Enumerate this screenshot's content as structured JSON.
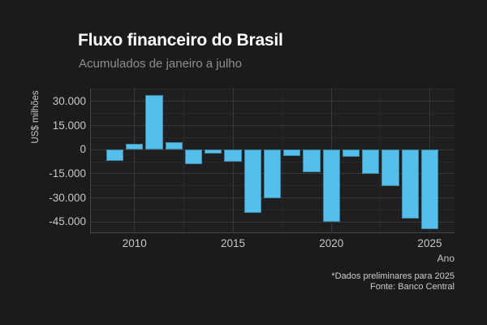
{
  "chart_data": {
    "type": "bar",
    "title": "Fluxo financeiro do Brasil",
    "subtitle": "Acumulados de janeiro a julho",
    "xlabel": "Ano",
    "ylabel": "US$ milhões",
    "caption_note": "*Dados preliminares para 2025",
    "caption_source": "Fonte: Banco Central",
    "categories": [
      2009,
      2010,
      2011,
      2012,
      2013,
      2014,
      2015,
      2016,
      2017,
      2018,
      2019,
      2020,
      2021,
      2022,
      2023,
      2024,
      2025
    ],
    "values": [
      -7000,
      3800,
      33800,
      4700,
      -9000,
      -2500,
      -7600,
      -39400,
      -30100,
      -3700,
      -13900,
      -45000,
      -4500,
      -15100,
      -22700,
      -42900,
      -49200
    ],
    "y_ticks": [
      {
        "value": 30000,
        "label": "30.000"
      },
      {
        "value": 15000,
        "label": "15.000"
      },
      {
        "value": 0,
        "label": "0"
      },
      {
        "value": -15000,
        "label": "-15.000"
      },
      {
        "value": -30000,
        "label": "-30.000"
      },
      {
        "value": -45000,
        "label": "-45.000"
      }
    ],
    "y_minor_ticks": [
      37500,
      22500,
      7500,
      -7500,
      -22500,
      -37500
    ],
    "x_ticks": [
      {
        "value": 2010,
        "label": "2010"
      },
      {
        "value": 2015,
        "label": "2015"
      },
      {
        "value": 2020,
        "label": "2020"
      },
      {
        "value": 2025,
        "label": "2025"
      }
    ],
    "x_minor_ticks": [
      2012.5,
      2017.5,
      2022.5
    ],
    "ylim": [
      -51600,
      38000
    ],
    "xlim": [
      2007.76,
      2026.26
    ],
    "grid": true,
    "legend": false,
    "bar_width_ratio": 0.88
  },
  "colors": {
    "background": "#1b1b1b",
    "panel": "#1f1f1f",
    "grid_major": "#383838",
    "grid_minor": "#2a2a2a",
    "axis_line": "#474747",
    "bar": "#56BEEB",
    "title_text": "#ffffff",
    "subtitle_text": "#8f8f8f",
    "tick_text": "#c7c7c7",
    "axis_title_text": "#c7c7c7",
    "caption_text": "#cccccc"
  }
}
